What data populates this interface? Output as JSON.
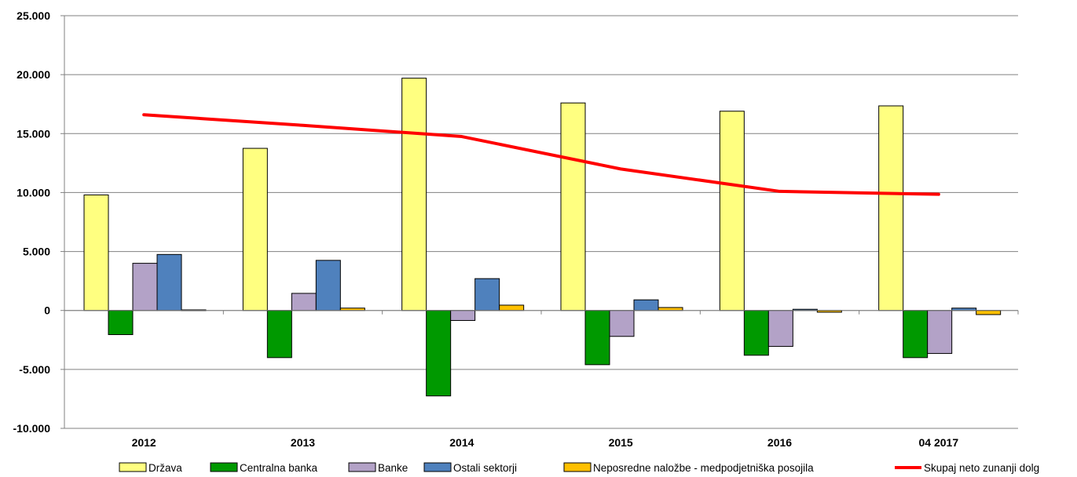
{
  "chart_data": {
    "type": "bar",
    "title": "",
    "xlabel": "",
    "ylabel": "",
    "categories": [
      "2012",
      "2013",
      "2014",
      "2015",
      "2016",
      "04 2017"
    ],
    "ylim": [
      -10000,
      25000
    ],
    "yticks": [
      -10000,
      -5000,
      0,
      5000,
      10000,
      15000,
      20000,
      25000
    ],
    "ytick_labels": [
      "-10.000",
      "-5.000",
      "0",
      "5.000",
      "10.000",
      "15.000",
      "20.000",
      "25.000"
    ],
    "grid": true,
    "legend_position": "bottom",
    "series": [
      {
        "name": "Država",
        "type": "bar",
        "color": "#FFFF80",
        "values": [
          9800,
          13750,
          19700,
          17600,
          16900,
          17350
        ]
      },
      {
        "name": "Centralna banka",
        "type": "bar",
        "color": "#009900",
        "values": [
          -2050,
          -4000,
          -7250,
          -4600,
          -3800,
          -4000
        ]
      },
      {
        "name": "Banke",
        "type": "bar",
        "color": "#B3A2C7",
        "values": [
          4000,
          1450,
          -850,
          -2200,
          -3050,
          -3650
        ]
      },
      {
        "name": "Ostali sektorji",
        "type": "bar",
        "color": "#4F81BD",
        "values": [
          4750,
          4250,
          2700,
          900,
          100,
          200
        ]
      },
      {
        "name": "Neposredne naložbe - medpodjetniška posojila",
        "type": "bar",
        "color": "#FFC000",
        "values": [
          50,
          200,
          450,
          250,
          -150,
          -350
        ]
      },
      {
        "name": "Skupaj neto zunanji dolg",
        "type": "line",
        "color": "#FF0000",
        "values": [
          16600,
          15700,
          14750,
          12000,
          10100,
          9850
        ]
      }
    ]
  }
}
